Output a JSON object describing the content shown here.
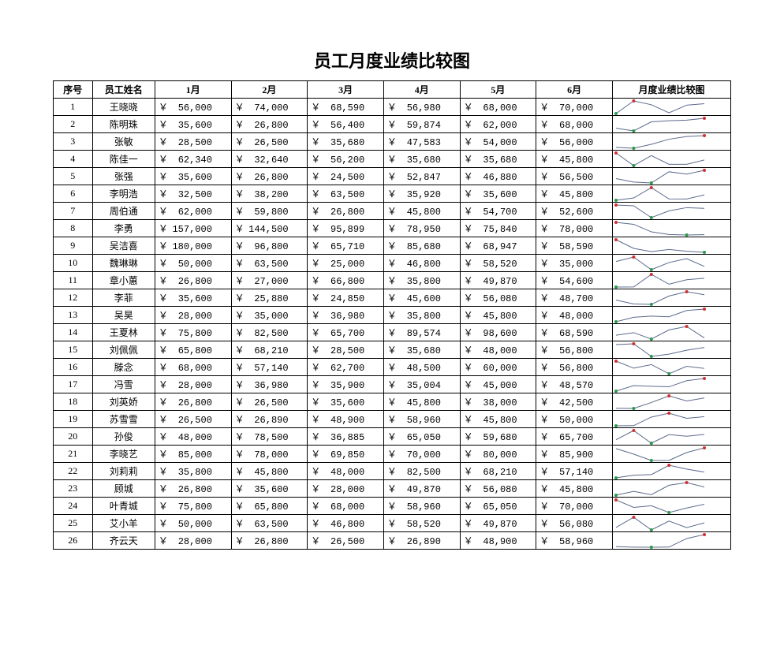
{
  "title": "员工月度业绩比较图",
  "columns": [
    "序号",
    "员工姓名",
    "1月",
    "2月",
    "3月",
    "4月",
    "5月",
    "6月",
    "月度业绩比较图"
  ],
  "currency_symbol": "￥",
  "spark": {
    "line_color": "#5b6b8c",
    "max_marker_color": "#d03030",
    "min_marker_color": "#2a9a4a",
    "marker_radius": 2
  },
  "rows": [
    {
      "id": 1,
      "name": "王晓晓",
      "values": [
        56000,
        74000,
        68590,
        56980,
        68000,
        70000
      ]
    },
    {
      "id": 2,
      "name": "陈明珠",
      "values": [
        35600,
        26800,
        56400,
        59874,
        62000,
        68000
      ]
    },
    {
      "id": 3,
      "name": "张敏",
      "values": [
        28500,
        26500,
        35680,
        47583,
        54000,
        56000
      ]
    },
    {
      "id": 4,
      "name": "陈佳一",
      "values": [
        62340,
        32640,
        56200,
        35680,
        35680,
        45800
      ]
    },
    {
      "id": 5,
      "name": "张强",
      "values": [
        35600,
        26800,
        24500,
        52847,
        46880,
        56500
      ]
    },
    {
      "id": 6,
      "name": "李明浩",
      "values": [
        32500,
        38200,
        63500,
        35920,
        35600,
        45800
      ]
    },
    {
      "id": 7,
      "name": "周伯通",
      "values": [
        62000,
        59800,
        26800,
        45800,
        54700,
        52600
      ]
    },
    {
      "id": 8,
      "name": "李勇",
      "values": [
        157000,
        144500,
        95899,
        78950,
        75840,
        78000
      ]
    },
    {
      "id": 9,
      "name": "吴洁喜",
      "values": [
        180000,
        96800,
        65710,
        85680,
        68947,
        58590
      ]
    },
    {
      "id": 10,
      "name": "魏琳琳",
      "values": [
        50000,
        63500,
        25000,
        46800,
        58520,
        35000
      ]
    },
    {
      "id": 11,
      "name": "章小蕙",
      "values": [
        26800,
        27000,
        66800,
        35800,
        49870,
        54600
      ]
    },
    {
      "id": 12,
      "name": "李菲",
      "values": [
        35600,
        25880,
        24850,
        45600,
        56080,
        48700
      ]
    },
    {
      "id": 13,
      "name": "吴昊",
      "values": [
        28000,
        35000,
        36980,
        35800,
        45800,
        48000
      ]
    },
    {
      "id": 14,
      "name": "王夏林",
      "values": [
        75800,
        82500,
        65700,
        89574,
        98600,
        68590
      ]
    },
    {
      "id": 15,
      "name": "刘佩佩",
      "values": [
        65800,
        68210,
        28500,
        35680,
        48000,
        56800
      ]
    },
    {
      "id": 16,
      "name": "滕念",
      "values": [
        68000,
        57140,
        62700,
        48500,
        60000,
        56800
      ]
    },
    {
      "id": 17,
      "name": "冯雪",
      "values": [
        28000,
        36980,
        35900,
        35004,
        45000,
        48570
      ]
    },
    {
      "id": 18,
      "name": "刘英娇",
      "values": [
        26800,
        26500,
        35600,
        45800,
        38000,
        42500
      ]
    },
    {
      "id": 19,
      "name": "苏雪雪",
      "values": [
        26500,
        26890,
        48900,
        58960,
        45800,
        50000
      ]
    },
    {
      "id": 20,
      "name": "孙俊",
      "values": [
        48000,
        78500,
        36885,
        65050,
        59680,
        65700
      ]
    },
    {
      "id": 21,
      "name": "李晓艺",
      "values": [
        85000,
        78000,
        69850,
        70000,
        80000,
        85900
      ]
    },
    {
      "id": 22,
      "name": "刘莉莉",
      "values": [
        35800,
        45800,
        48000,
        82500,
        68210,
        57140
      ]
    },
    {
      "id": 23,
      "name": "顾城",
      "values": [
        26800,
        35600,
        28000,
        49870,
        56080,
        45800
      ]
    },
    {
      "id": 24,
      "name": "叶青城",
      "values": [
        75800,
        65800,
        68000,
        58960,
        65050,
        70000
      ]
    },
    {
      "id": 25,
      "name": "艾小羊",
      "values": [
        50000,
        63500,
        46800,
        58520,
        49870,
        56080
      ]
    },
    {
      "id": 26,
      "name": "齐云天",
      "values": [
        28000,
        26800,
        26500,
        26890,
        48900,
        58960
      ]
    }
  ]
}
